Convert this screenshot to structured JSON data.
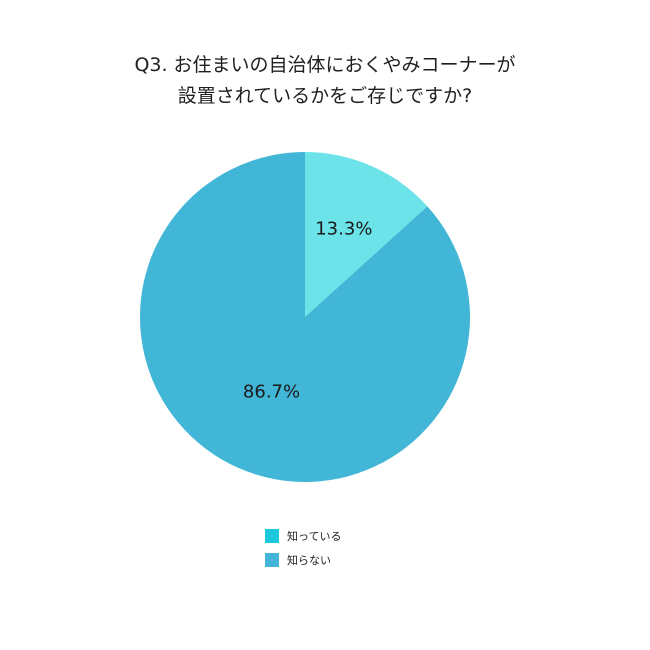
{
  "chart_data": {
    "type": "pie",
    "title_lines": [
      "Q3. お住まいの自治体におくやみコーナーが",
      "設置されているかをご存じですか?"
    ],
    "slices": [
      {
        "name": "知っている",
        "value": 13.3,
        "label": "13.3%",
        "color": "#6be3e8"
      },
      {
        "name": "知らない",
        "value": 86.7,
        "label": "86.7%",
        "color": "#42b6d6"
      }
    ],
    "legend": {
      "placement": "bottom-center",
      "items": [
        {
          "label": "知っている",
          "color": "#1cc8dc"
        },
        {
          "label": "知らない",
          "color": "#42b6d6"
        }
      ]
    }
  }
}
